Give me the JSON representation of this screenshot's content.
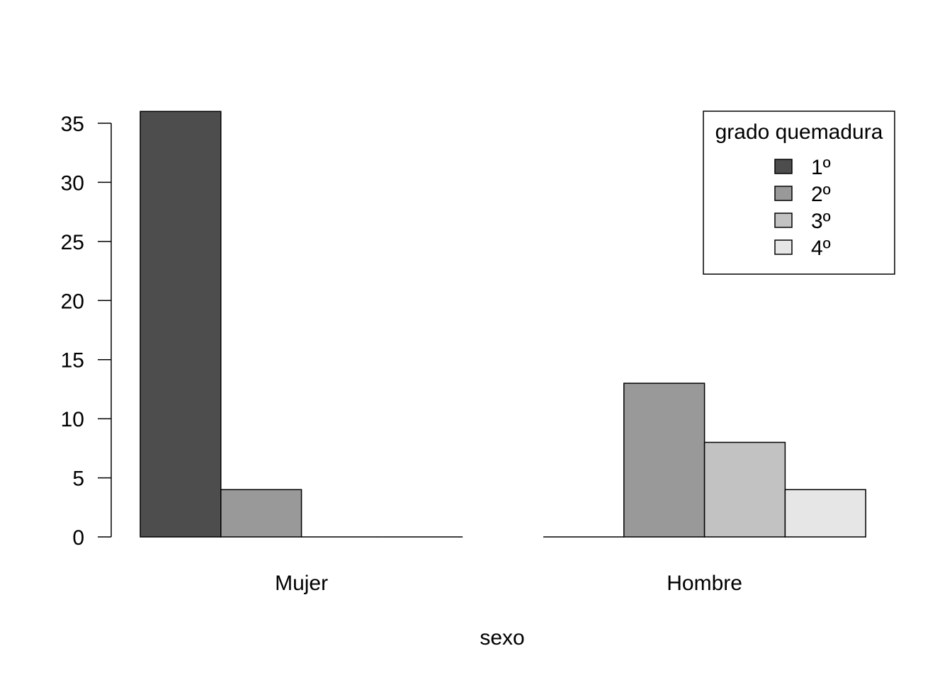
{
  "chart_data": {
    "type": "bar",
    "layout": "grouped",
    "categories": [
      "Mujer",
      "Hombre"
    ],
    "series": [
      {
        "name": "1º",
        "values": [
          36,
          0
        ],
        "color": "#4d4d4d"
      },
      {
        "name": "2º",
        "values": [
          4,
          13
        ],
        "color": "#999999"
      },
      {
        "name": "3º",
        "values": [
          0,
          8
        ],
        "color": "#c2c2c2"
      },
      {
        "name": "4º",
        "values": [
          0,
          4
        ],
        "color": "#e6e6e6"
      }
    ],
    "title": "",
    "xlabel": "sexo",
    "ylabel": "",
    "ylim": [
      0,
      35
    ],
    "yticks": [
      0,
      5,
      10,
      15,
      20,
      25,
      30,
      35
    ],
    "grid": false,
    "legend": {
      "title": "grado quemadura",
      "position": "top-right",
      "boxed": true
    }
  }
}
